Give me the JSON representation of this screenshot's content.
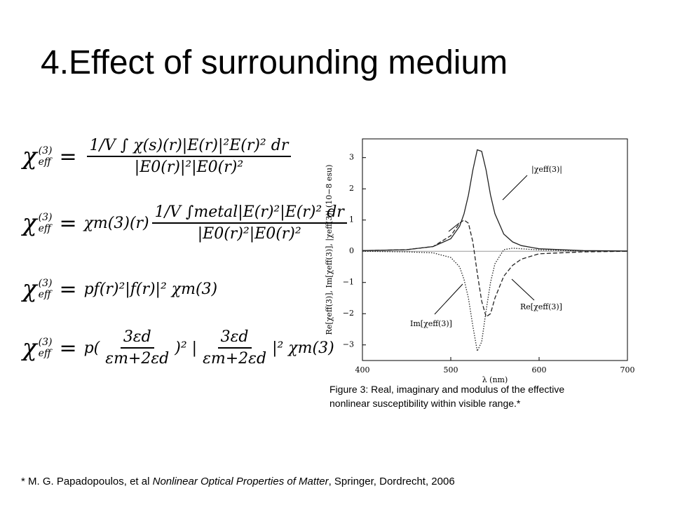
{
  "title": "4.Effect of surrounding medium",
  "equation_lhs": {
    "base": "χ",
    "sup": "(3)",
    "sub": "eff"
  },
  "equals": "=",
  "equations": [
    [
      {
        "num": "1/V ∫ χ(s)(r)|E(r)|²E(r)² dr",
        "den": "|E0(r)|²|E0(r)²"
      }
    ],
    [
      "χm(3)(r)",
      {
        "num": "1/V ∫metal|E(r)²|E(r)² dr",
        "den": "|E0(r)²|E0(r)²"
      }
    ],
    [
      "pf(r)²|f(r)|² χm(3)"
    ],
    [
      "p(",
      {
        "num": "3εd",
        "den": "εm+2εd"
      },
      ")² |",
      {
        "num": "3εd",
        "den": "εm+2εd"
      },
      "|² χm(3)"
    ]
  ],
  "chart_data": {
    "type": "line",
    "x_label": "λ (nm)",
    "y_label": "Re[χeff(3)], Im[χeff(3)], |χeff(3)| (10−8 esu)",
    "x": [
      400,
      450,
      480,
      500,
      510,
      515,
      520,
      525,
      530,
      535,
      540,
      545,
      550,
      560,
      570,
      580,
      600,
      650,
      700
    ],
    "series": [
      {
        "name": "|χeff(3)|",
        "color": "#222222",
        "style": "solid",
        "values": [
          0.02,
          0.05,
          0.15,
          0.4,
          0.8,
          1.2,
          1.8,
          2.6,
          3.25,
          3.2,
          2.6,
          1.8,
          1.2,
          0.55,
          0.3,
          0.18,
          0.08,
          0.02,
          0.01
        ]
      },
      {
        "name": "Re[χeff(3)]",
        "color": "#222222",
        "style": "dashed",
        "values": [
          0.02,
          0.05,
          0.15,
          0.5,
          0.9,
          1.0,
          0.9,
          0.3,
          -0.7,
          -1.6,
          -2.1,
          -2.0,
          -1.5,
          -0.8,
          -0.45,
          -0.25,
          -0.08,
          -0.02,
          0
        ]
      },
      {
        "name": "Im[χeff(3)]",
        "color": "#222222",
        "style": "dotted",
        "values": [
          0,
          -0.02,
          -0.05,
          -0.2,
          -0.5,
          -0.9,
          -1.5,
          -2.4,
          -3.2,
          -2.9,
          -1.9,
          -1.0,
          -0.4,
          0.05,
          0.1,
          0.08,
          0.04,
          0.01,
          0
        ]
      }
    ],
    "xlim": [
      400,
      700
    ],
    "ylim": [
      -3.5,
      3.6
    ],
    "xticks": [
      400,
      500,
      600,
      700
    ],
    "yticks": [
      {
        "value": -3,
        "label": "−3"
      },
      {
        "value": -2,
        "label": "−2"
      },
      {
        "value": -1,
        "label": "−1"
      },
      0,
      1,
      2,
      3
    ]
  },
  "caption": [
    "Figure 3: Real, imaginary and modulus of the effective",
    "nonlinear susceptibility within visible range.*"
  ],
  "footnote": [
    "* M. G. Papadopoulos, et al ",
    "Nonlinear Optical Properties of Matter",
    ", Springer, Dordrecht, 2006"
  ]
}
